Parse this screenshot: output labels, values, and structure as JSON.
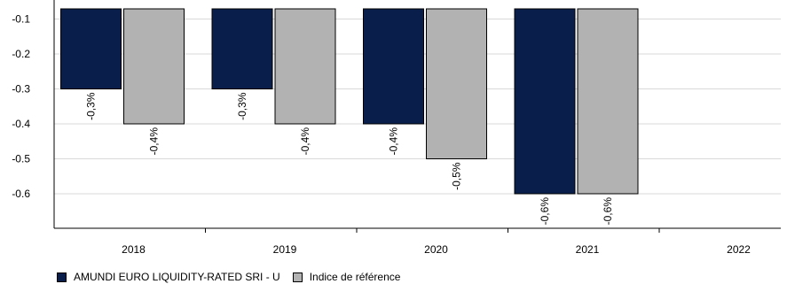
{
  "chart_data": {
    "type": "bar",
    "categories": [
      "2018",
      "2019",
      "2020",
      "2021",
      "2022"
    ],
    "series": [
      {
        "name": "AMUNDI EURO LIQUIDITY-RATED SRI - U",
        "values": [
          -0.3,
          -0.3,
          -0.4,
          -0.6,
          null
        ],
        "labels": [
          "-0,3%",
          "-0,3%",
          "-0,4%",
          "-0,6%",
          ""
        ],
        "color": "#0a1e4b"
      },
      {
        "name": "Indice de référence",
        "values": [
          -0.4,
          -0.4,
          -0.5,
          -0.6,
          null
        ],
        "labels": [
          "-0,4%",
          "-0,4%",
          "-0,5%",
          "-0,6%",
          ""
        ],
        "color": "#b2b2b2"
      }
    ],
    "y_ticks": [
      "-0.1",
      "-0.2",
      "-0.3",
      "-0.4",
      "-0.5",
      "-0.6"
    ],
    "ylim": [
      -0.7,
      -0.07
    ],
    "grid": true,
    "legend_position": "bottom-left"
  }
}
